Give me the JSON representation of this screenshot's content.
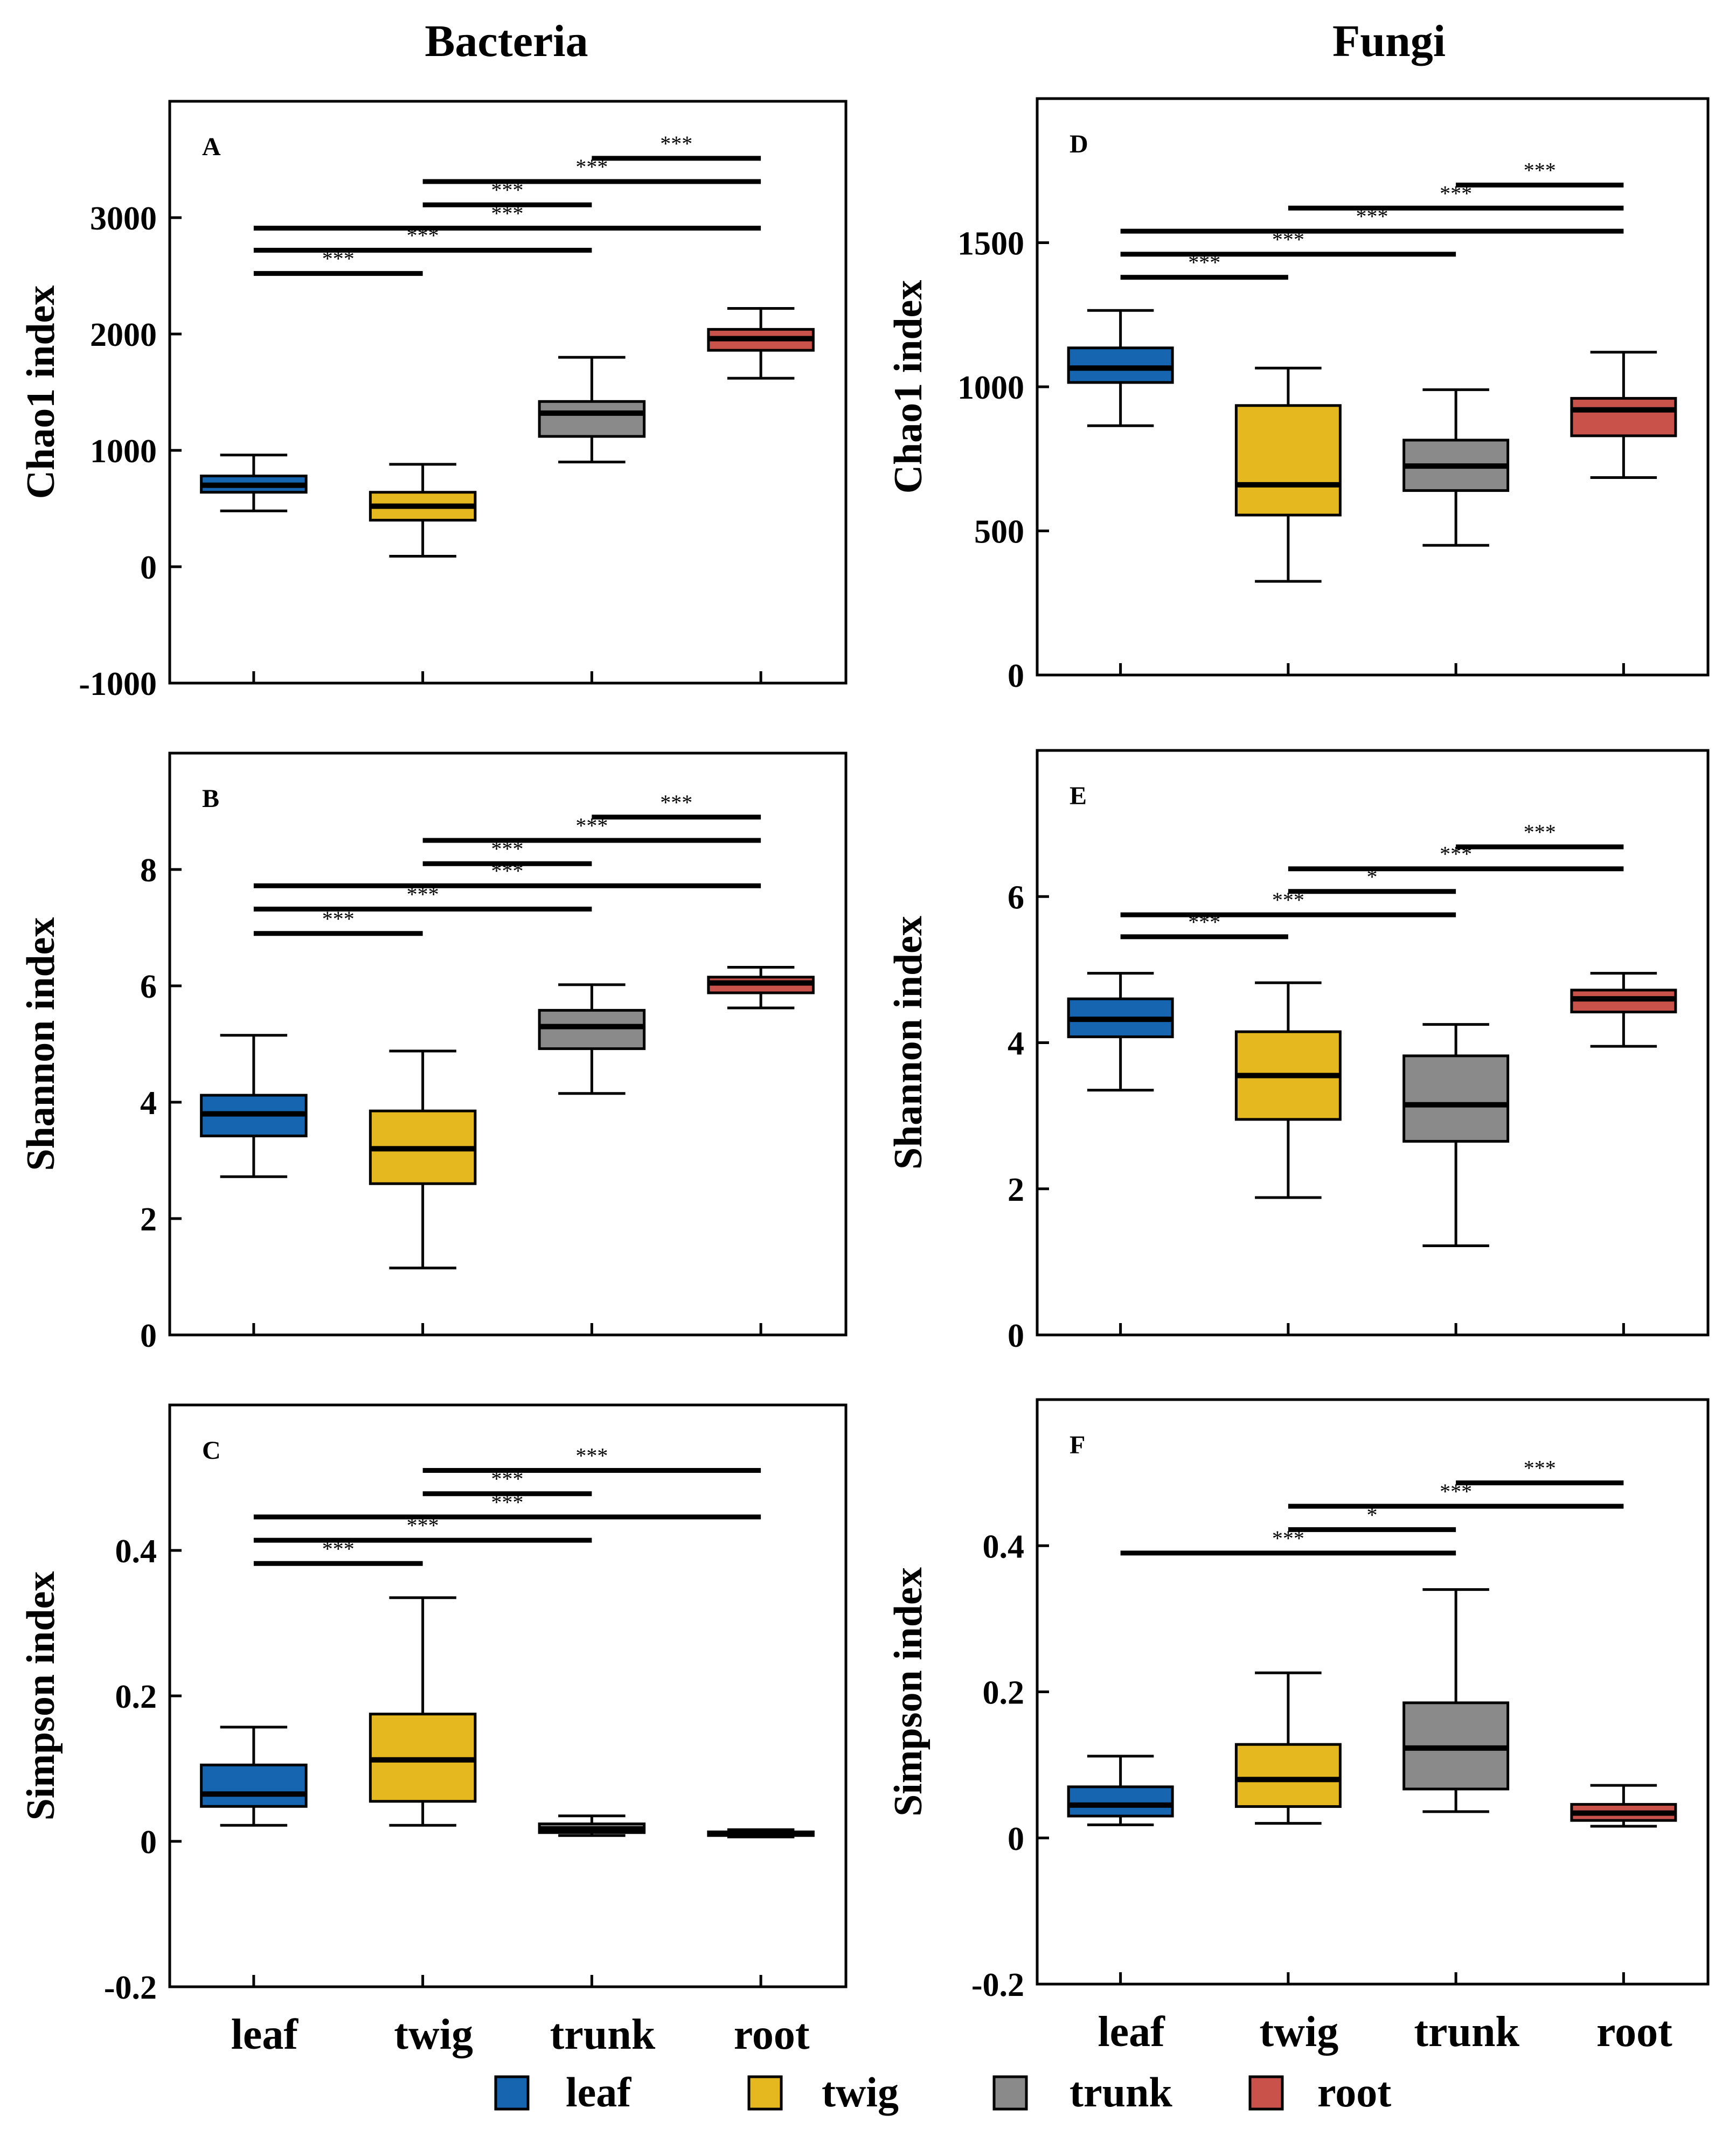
{
  "columns": [
    {
      "title": "Bacteria"
    },
    {
      "title": "Fungi"
    }
  ],
  "legend": {
    "items": [
      {
        "label": "leaf",
        "color": "#1565b0"
      },
      {
        "label": "twig",
        "color": "#e6b820"
      },
      {
        "label": "trunk",
        "color": "#8a8a8a"
      },
      {
        "label": "root",
        "color": "#c9534a"
      }
    ]
  },
  "chart_data": [
    {
      "id": "A",
      "type": "box",
      "title": "A",
      "ylabel": "Chao1 index",
      "categories": [
        "leaf",
        "twig",
        "trunk",
        "root"
      ],
      "colors": [
        "#1565b0",
        "#e6b820",
        "#8a8a8a",
        "#c9534a"
      ],
      "ylim": [
        -1000,
        4000
      ],
      "yticks": [
        -1000,
        0,
        1000,
        2000,
        3000
      ],
      "ytick_labels": [
        "-1000",
        "0",
        "1000",
        "2000",
        "3000"
      ],
      "boxes": [
        {
          "min": 480,
          "q1": 640,
          "median": 700,
          "q3": 780,
          "max": 960
        },
        {
          "min": 90,
          "q1": 400,
          "median": 520,
          "q3": 640,
          "max": 880
        },
        {
          "min": 900,
          "q1": 1120,
          "median": 1320,
          "q3": 1420,
          "max": 1800
        },
        {
          "min": 1620,
          "q1": 1860,
          "median": 1960,
          "q3": 2040,
          "max": 2220
        }
      ],
      "significance": [
        {
          "from": 0,
          "to": 1,
          "y": 2520,
          "label": "***"
        },
        {
          "from": 0,
          "to": 2,
          "y": 2720,
          "label": "***"
        },
        {
          "from": 0,
          "to": 3,
          "y": 2910,
          "label": "***"
        },
        {
          "from": 1,
          "to": 2,
          "y": 3110,
          "label": "***"
        },
        {
          "from": 1,
          "to": 3,
          "y": 3310,
          "label": "***"
        },
        {
          "from": 2,
          "to": 3,
          "y": 3510,
          "label": "***"
        }
      ]
    },
    {
      "id": "B",
      "type": "box",
      "title": "B",
      "ylabel": "Shannon index",
      "categories": [
        "leaf",
        "twig",
        "trunk",
        "root"
      ],
      "colors": [
        "#1565b0",
        "#e6b820",
        "#8a8a8a",
        "#c9534a"
      ],
      "ylim": [
        0,
        10
      ],
      "yticks": [
        0,
        2,
        4,
        6,
        8
      ],
      "ytick_labels": [
        "0",
        "2",
        "4",
        "6",
        "8"
      ],
      "boxes": [
        {
          "min": 2.72,
          "q1": 3.42,
          "median": 3.8,
          "q3": 4.12,
          "max": 5.15
        },
        {
          "min": 1.15,
          "q1": 2.6,
          "median": 3.2,
          "q3": 3.85,
          "max": 4.88
        },
        {
          "min": 4.15,
          "q1": 4.92,
          "median": 5.3,
          "q3": 5.58,
          "max": 6.02
        },
        {
          "min": 5.62,
          "q1": 5.88,
          "median": 6.05,
          "q3": 6.15,
          "max": 6.32
        }
      ],
      "significance": [
        {
          "from": 0,
          "to": 1,
          "y": 6.9,
          "label": "***"
        },
        {
          "from": 0,
          "to": 2,
          "y": 7.32,
          "label": "***"
        },
        {
          "from": 0,
          "to": 3,
          "y": 7.72,
          "label": "***"
        },
        {
          "from": 1,
          "to": 2,
          "y": 8.1,
          "label": "***"
        },
        {
          "from": 1,
          "to": 3,
          "y": 8.5,
          "label": "***"
        },
        {
          "from": 2,
          "to": 3,
          "y": 8.9,
          "label": "***"
        }
      ]
    },
    {
      "id": "C",
      "type": "box",
      "title": "C",
      "ylabel": "Simpson index",
      "categories": [
        "leaf",
        "twig",
        "trunk",
        "root"
      ],
      "colors": [
        "#1565b0",
        "#e6b820",
        "#8a8a8a",
        "#c9534a"
      ],
      "ylim": [
        -0.2,
        0.6
      ],
      "yticks": [
        -0.2,
        0,
        0.2,
        0.4
      ],
      "ytick_labels": [
        "-0.2",
        "0",
        "0.2",
        "0.4"
      ],
      "boxes": [
        {
          "min": 0.022,
          "q1": 0.048,
          "median": 0.065,
          "q3": 0.105,
          "max": 0.157
        },
        {
          "min": 0.022,
          "q1": 0.055,
          "median": 0.112,
          "q3": 0.175,
          "max": 0.335
        },
        {
          "min": 0.008,
          "q1": 0.012,
          "median": 0.017,
          "q3": 0.024,
          "max": 0.035
        },
        {
          "min": 0.006,
          "q1": 0.008,
          "median": 0.011,
          "q3": 0.013,
          "max": 0.016
        }
      ],
      "significance": [
        {
          "from": 0,
          "to": 1,
          "y": 0.382,
          "label": "***"
        },
        {
          "from": 0,
          "to": 2,
          "y": 0.414,
          "label": "***"
        },
        {
          "from": 0,
          "to": 3,
          "y": 0.446,
          "label": "***"
        },
        {
          "from": 1,
          "to": 2,
          "y": 0.478,
          "label": "***"
        },
        {
          "from": 1,
          "to": 3,
          "y": 0.51,
          "label": "***"
        }
      ]
    },
    {
      "id": "D",
      "type": "box",
      "title": "D",
      "ylabel": "Chao1 index",
      "categories": [
        "leaf",
        "twig",
        "trunk",
        "root"
      ],
      "colors": [
        "#1565b0",
        "#e6b820",
        "#8a8a8a",
        "#c9534a"
      ],
      "ylim": [
        0,
        2000
      ],
      "yticks": [
        0,
        500,
        1000,
        1500
      ],
      "ytick_labels": [
        "0",
        "500",
        "1000",
        "1500"
      ],
      "boxes": [
        {
          "min": 865,
          "q1": 1015,
          "median": 1065,
          "q3": 1135,
          "max": 1265
        },
        {
          "min": 325,
          "q1": 555,
          "median": 660,
          "q3": 935,
          "max": 1065
        },
        {
          "min": 450,
          "q1": 640,
          "median": 725,
          "q3": 815,
          "max": 990
        },
        {
          "min": 685,
          "q1": 830,
          "median": 920,
          "q3": 960,
          "max": 1120
        }
      ],
      "significance": [
        {
          "from": 0,
          "to": 1,
          "y": 1380,
          "label": "***"
        },
        {
          "from": 0,
          "to": 2,
          "y": 1460,
          "label": "***"
        },
        {
          "from": 0,
          "to": 3,
          "y": 1540,
          "label": "***"
        },
        {
          "from": 1,
          "to": 3,
          "y": 1620,
          "label": "***"
        },
        {
          "from": 2,
          "to": 3,
          "y": 1700,
          "label": "***"
        }
      ]
    },
    {
      "id": "E",
      "type": "box",
      "title": "E",
      "ylabel": "Shannon index",
      "categories": [
        "leaf",
        "twig",
        "trunk",
        "root"
      ],
      "colors": [
        "#1565b0",
        "#e6b820",
        "#8a8a8a",
        "#c9534a"
      ],
      "ylim": [
        0,
        8
      ],
      "yticks": [
        0,
        2,
        4,
        6
      ],
      "ytick_labels": [
        "0",
        "2",
        "4",
        "6"
      ],
      "boxes": [
        {
          "min": 3.35,
          "q1": 4.08,
          "median": 4.32,
          "q3": 4.6,
          "max": 4.95
        },
        {
          "min": 1.88,
          "q1": 2.95,
          "median": 3.55,
          "q3": 4.15,
          "max": 4.82
        },
        {
          "min": 1.22,
          "q1": 2.65,
          "median": 3.15,
          "q3": 3.82,
          "max": 4.25
        },
        {
          "min": 3.95,
          "q1": 4.42,
          "median": 4.6,
          "q3": 4.72,
          "max": 4.95
        }
      ],
      "significance": [
        {
          "from": 0,
          "to": 1,
          "y": 5.45,
          "label": "***"
        },
        {
          "from": 0,
          "to": 2,
          "y": 5.75,
          "label": "***"
        },
        {
          "from": 1,
          "to": 2,
          "y": 6.07,
          "label": "*"
        },
        {
          "from": 1,
          "to": 3,
          "y": 6.38,
          "label": "***"
        },
        {
          "from": 2,
          "to": 3,
          "y": 6.68,
          "label": "***"
        }
      ]
    },
    {
      "id": "F",
      "type": "box",
      "title": "F",
      "ylabel": "Simpson index",
      "categories": [
        "leaf",
        "twig",
        "trunk",
        "root"
      ],
      "colors": [
        "#1565b0",
        "#e6b820",
        "#8a8a8a",
        "#c9534a"
      ],
      "ylim": [
        -0.2,
        0.6
      ],
      "yticks": [
        -0.2,
        0,
        0.2,
        0.4
      ],
      "ytick_labels": [
        "-0.2",
        "0",
        "0.2",
        "0.4"
      ],
      "boxes": [
        {
          "min": 0.018,
          "q1": 0.03,
          "median": 0.045,
          "q3": 0.07,
          "max": 0.112
        },
        {
          "min": 0.02,
          "q1": 0.043,
          "median": 0.08,
          "q3": 0.128,
          "max": 0.226
        },
        {
          "min": 0.036,
          "q1": 0.067,
          "median": 0.123,
          "q3": 0.185,
          "max": 0.34
        },
        {
          "min": 0.016,
          "q1": 0.024,
          "median": 0.034,
          "q3": 0.046,
          "max": 0.072
        }
      ],
      "significance": [
        {
          "from": 0,
          "to": 2,
          "y": 0.39,
          "label": "***"
        },
        {
          "from": 1,
          "to": 2,
          "y": 0.422,
          "label": "*"
        },
        {
          "from": 1,
          "to": 3,
          "y": 0.454,
          "label": "***"
        },
        {
          "from": 2,
          "to": 3,
          "y": 0.486,
          "label": "***"
        }
      ]
    }
  ]
}
